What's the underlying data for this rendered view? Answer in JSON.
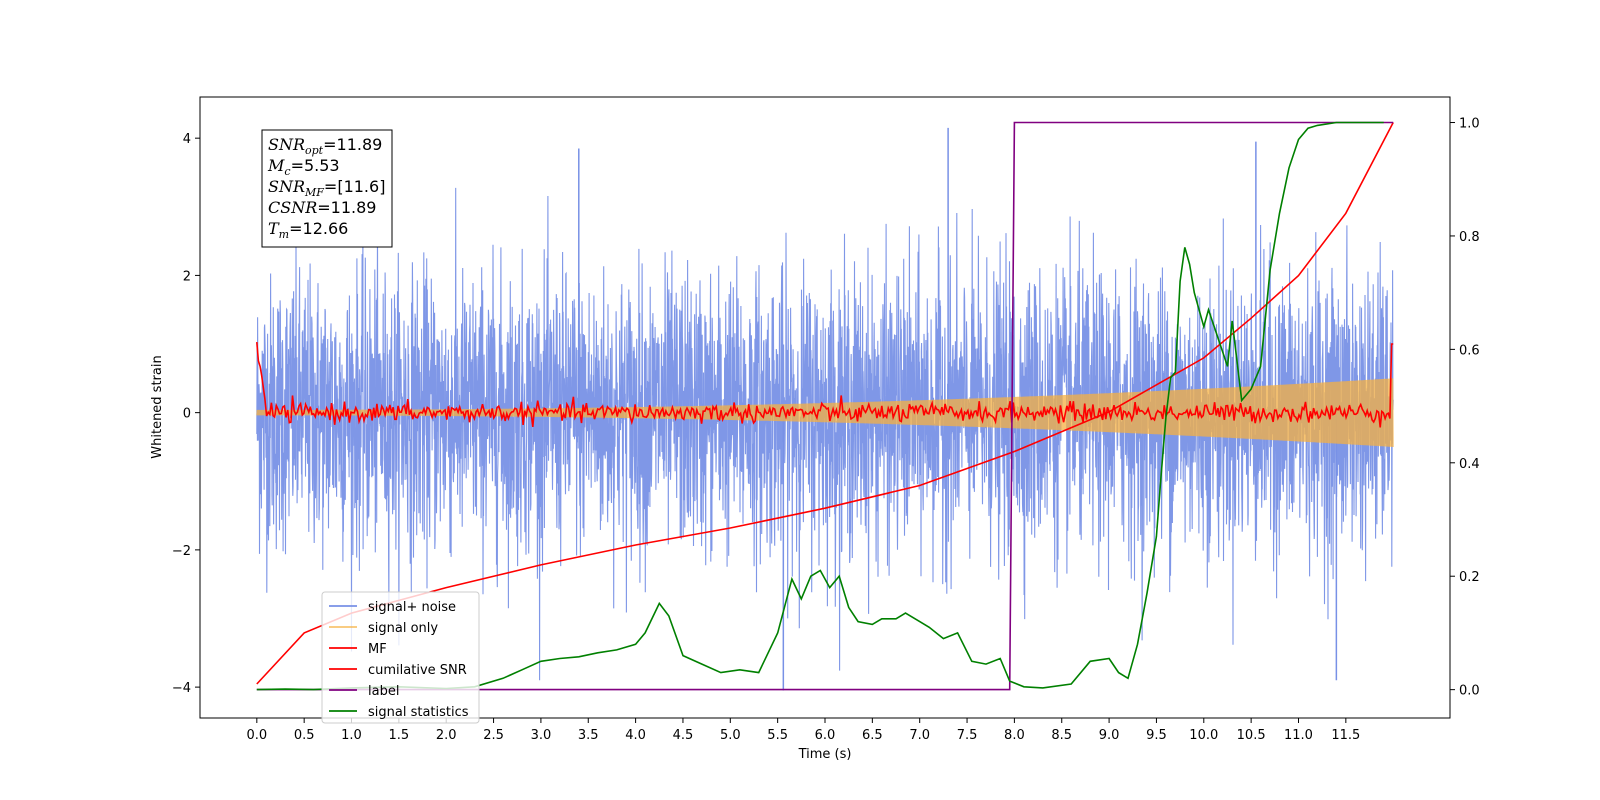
{
  "chart_data": {
    "type": "line",
    "xlabel": "Time (s)",
    "ylabel": "Whitened strain",
    "xlim": [
      -0.6,
      12.6
    ],
    "ylim": [
      -4.45,
      4.6
    ],
    "ylim_right": [
      -0.05,
      1.045
    ],
    "xticks": [
      "0.0",
      "0.5",
      "1.0",
      "1.5",
      "2.0",
      "2.5",
      "3.0",
      "3.5",
      "4.0",
      "4.5",
      "5.0",
      "5.5",
      "6.0",
      "6.5",
      "7.0",
      "7.5",
      "8.0",
      "8.5",
      "9.0",
      "9.5",
      "10.0",
      "10.5",
      "11.0",
      "11.5"
    ],
    "yticks_left": [
      "4",
      "2",
      "0",
      "−2",
      "−4"
    ],
    "yticks_right": [
      "1.0",
      "0.8",
      "0.6",
      "0.4",
      "0.2",
      "0.0"
    ],
    "grid": false,
    "legend_position": "lower-left",
    "annotation": {
      "lines": [
        {
          "symbol": "SNR",
          "sub": "opt",
          "value": "=11.89"
        },
        {
          "symbol": "M",
          "sub": "c",
          "value": "=5.53"
        },
        {
          "symbol": "SNR",
          "sub": "MF",
          "value": "=[11.6]"
        },
        {
          "symbol": "CSNR",
          "sub": "",
          "value": "=11.89"
        },
        {
          "symbol": "T",
          "sub": "m",
          "value": "=12.66"
        }
      ]
    },
    "series": [
      {
        "name": "signal+ noise",
        "color": "#7891e6",
        "axis": "left",
        "kind": "noise",
        "x_range": [
          0.0,
          12.0
        ],
        "sigma": 1.0,
        "envelope_max": 4.2,
        "envelope_min": -3.9,
        "notable_points": [
          [
            5.56,
            -4.05
          ],
          [
            7.3,
            4.15
          ],
          [
            10.55,
            3.95
          ],
          [
            11.4,
            -3.9
          ],
          [
            3.4,
            3.85
          ]
        ]
      },
      {
        "name": "signal only",
        "color": "#f5b041",
        "axis": "left",
        "kind": "chirp",
        "amplitude_start": 0.04,
        "amplitude_end": 0.5,
        "x_range": [
          0.0,
          12.0
        ]
      },
      {
        "name": "MF",
        "color": "#ff0000",
        "axis": "left",
        "kind": "mf",
        "x": [
          0.0,
          0.02,
          0.1,
          0.5,
          1.0,
          2.0,
          3.0,
          4.0,
          5.0,
          6.0,
          7.0,
          8.0,
          9.0,
          10.0,
          11.0,
          11.98,
          12.0
        ],
        "y": [
          1.0,
          0.2,
          0.0,
          0.0,
          0.0,
          0.0,
          0.0,
          0.0,
          0.0,
          0.0,
          0.0,
          0.0,
          0.0,
          0.0,
          0.0,
          0.0,
          1.0
        ]
      },
      {
        "name": "cumilative SNR",
        "color": "#ff0000",
        "axis": "right",
        "x": [
          0.0,
          0.5,
          1.0,
          2.0,
          3.0,
          4.0,
          5.0,
          6.0,
          7.0,
          8.0,
          9.0,
          10.0,
          10.5,
          11.0,
          11.5,
          12.0
        ],
        "y": [
          0.01,
          0.1,
          0.135,
          0.18,
          0.22,
          0.255,
          0.285,
          0.32,
          0.36,
          0.42,
          0.49,
          0.585,
          0.655,
          0.73,
          0.84,
          1.0
        ]
      },
      {
        "name": "label",
        "color": "#800080",
        "axis": "right",
        "x": [
          0.0,
          7.95,
          8.0,
          12.0
        ],
        "y": [
          0.0,
          0.0,
          1.0,
          1.0
        ]
      },
      {
        "name": "signal statistics",
        "color": "#008000",
        "axis": "right",
        "x": [
          0.0,
          0.3,
          0.6,
          1.0,
          1.5,
          2.0,
          2.3,
          2.6,
          2.8,
          3.0,
          3.2,
          3.4,
          3.6,
          3.8,
          4.0,
          4.1,
          4.25,
          4.35,
          4.5,
          4.7,
          4.9,
          5.1,
          5.3,
          5.5,
          5.65,
          5.75,
          5.85,
          5.95,
          6.05,
          6.15,
          6.25,
          6.35,
          6.5,
          6.6,
          6.75,
          6.85,
          7.0,
          7.1,
          7.25,
          7.4,
          7.55,
          7.7,
          7.85,
          7.95,
          8.1,
          8.3,
          8.6,
          8.8,
          9.0,
          9.1,
          9.2,
          9.3,
          9.4,
          9.5,
          9.55,
          9.6,
          9.65,
          9.7,
          9.75,
          9.8,
          9.85,
          9.9,
          10.0,
          10.05,
          10.15,
          10.25,
          10.3,
          10.4,
          10.5,
          10.6,
          10.7,
          10.8,
          10.9,
          11.0,
          11.1,
          11.2,
          11.4,
          11.6,
          11.9
        ],
        "y": [
          0.0,
          0.001,
          0.0,
          0.003,
          0.005,
          0.002,
          0.005,
          0.02,
          0.035,
          0.05,
          0.055,
          0.058,
          0.065,
          0.07,
          0.08,
          0.1,
          0.152,
          0.13,
          0.06,
          0.045,
          0.03,
          0.035,
          0.03,
          0.1,
          0.195,
          0.16,
          0.2,
          0.21,
          0.18,
          0.2,
          0.145,
          0.12,
          0.115,
          0.125,
          0.125,
          0.135,
          0.12,
          0.11,
          0.09,
          0.1,
          0.05,
          0.045,
          0.055,
          0.015,
          0.005,
          0.003,
          0.01,
          0.05,
          0.055,
          0.03,
          0.02,
          0.08,
          0.17,
          0.27,
          0.38,
          0.48,
          0.55,
          0.56,
          0.72,
          0.78,
          0.75,
          0.7,
          0.64,
          0.67,
          0.62,
          0.57,
          0.65,
          0.51,
          0.53,
          0.57,
          0.74,
          0.84,
          0.92,
          0.97,
          0.99,
          0.995,
          1.0,
          1.0,
          1.0
        ]
      }
    ]
  }
}
